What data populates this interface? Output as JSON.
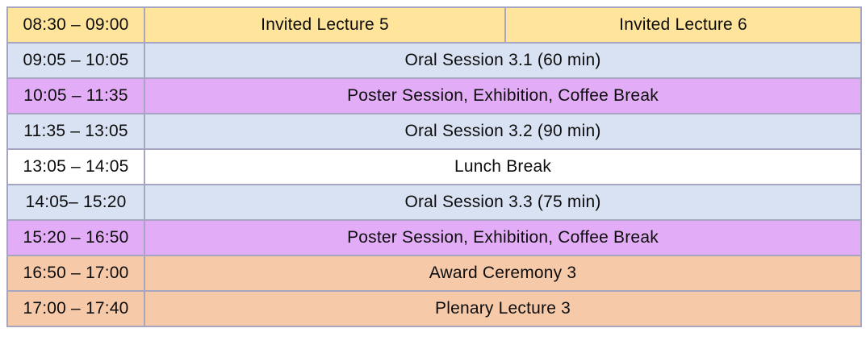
{
  "table": {
    "border_color": "#a6a6c2",
    "text_color": "#0d0d0d",
    "colors": {
      "yellow": "#ffe49b",
      "blue": "#d9e2f3",
      "purple": "#e2adf6",
      "white": "#ffffff",
      "orange": "#f6caa9"
    },
    "rows": [
      {
        "time": "08:30 – 09:00",
        "color": "yellow",
        "events": [
          "Invited Lecture 5",
          "Invited Lecture 6"
        ]
      },
      {
        "time": "09:05 – 10:05",
        "color": "blue",
        "events": [
          "Oral Session 3.1 (60 min)"
        ]
      },
      {
        "time": "10:05 – 11:35",
        "color": "purple",
        "events": [
          "Poster Session, Exhibition, Coffee Break"
        ]
      },
      {
        "time": "11:35 – 13:05",
        "color": "blue",
        "events": [
          "Oral Session 3.2 (90 min)"
        ]
      },
      {
        "time": "13:05 – 14:05",
        "color": "white",
        "events": [
          "Lunch Break"
        ]
      },
      {
        "time": "14:05– 15:20",
        "color": "blue",
        "events": [
          "Oral Session 3.3 (75 min)"
        ]
      },
      {
        "time": "15:20 – 16:50",
        "color": "purple",
        "events": [
          "Poster Session, Exhibition, Coffee Break"
        ]
      },
      {
        "time": "16:50 – 17:00",
        "color": "orange",
        "events": [
          "Award Ceremony 3"
        ]
      },
      {
        "time": "17:00 – 17:40",
        "color": "orange",
        "events": [
          "Plenary Lecture 3"
        ]
      }
    ]
  }
}
